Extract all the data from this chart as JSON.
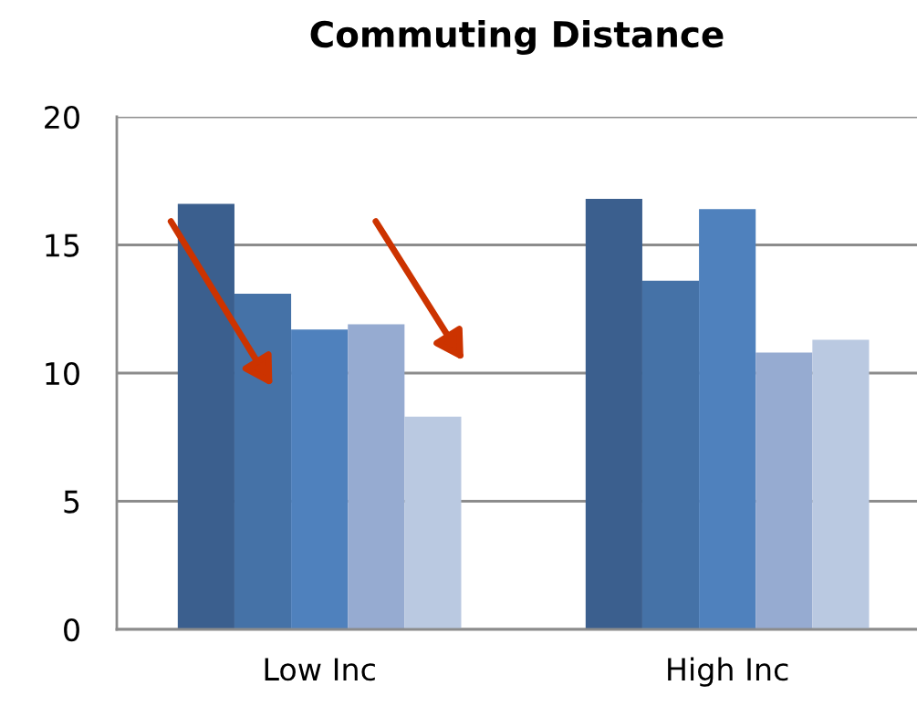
{
  "chart_data": {
    "type": "bar",
    "title": "Commuting Distance",
    "categories": [
      "Low Inc",
      "High Inc"
    ],
    "series": [
      {
        "color": "#3b5f8e",
        "values": [
          16.6,
          16.8
        ]
      },
      {
        "color": "#4572a7",
        "values": [
          13.1,
          13.6
        ]
      },
      {
        "color": "#4f81bd",
        "values": [
          11.7,
          16.4
        ]
      },
      {
        "color": "#96abd1",
        "values": [
          11.9,
          10.8
        ]
      },
      {
        "color": "#bac9e1",
        "values": [
          8.3,
          11.3
        ]
      }
    ],
    "ylim": [
      0,
      20
    ],
    "yticks": [
      0,
      5,
      10,
      15,
      20
    ],
    "grid": "y"
  }
}
